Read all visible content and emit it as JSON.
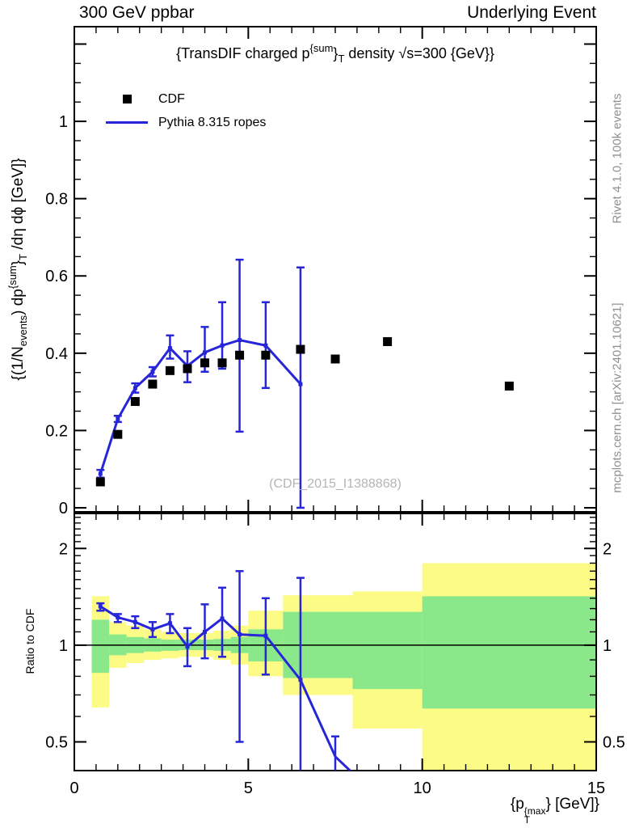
{
  "header": {
    "left": "300 GeV ppbar",
    "right": "Underlying Event"
  },
  "plot": {
    "title": {
      "pre": "{TransDIF charged p",
      "sup": "{sum",
      "mid": "}",
      "sub": "T",
      "post": " density √s=300 {GeV}}"
    },
    "legend": [
      {
        "label": "CDF",
        "marker": "filled-square",
        "color": "#000000"
      },
      {
        "label": "Pythia 8.315 ropes",
        "marker": "line",
        "color": "#2626d8"
      }
    ],
    "ylabel": {
      "p1": "{(1/N",
      "s1": "events",
      "p2": ") dp",
      "sup": "{sum",
      "p3": "}",
      "s2": "T",
      "p4": " /dη dϕ [GeV]}"
    },
    "xlabel": {
      "pre": "{p",
      "sup": "{max",
      "sub": "T",
      "post": "} [GeV]}"
    },
    "ratio_label": "Ratio to CDF",
    "side_text_top": "Rivet 4.1.0,  100k events",
    "side_text_bottom": "mcplots.cern.ch [arXiv:2401.10621]",
    "watermark": "(CDF_2015_I1388868)"
  },
  "axes": {
    "x_major": [
      {
        "v": 0,
        "label": "0"
      },
      {
        "v": 5,
        "label": "5"
      },
      {
        "v": 10,
        "label": "10"
      },
      {
        "v": 15,
        "label": "15"
      }
    ],
    "main_y_major": [
      {
        "v": 0,
        "label": "0"
      },
      {
        "v": 0.2,
        "label": "0.2"
      },
      {
        "v": 0.4,
        "label": "0.4"
      },
      {
        "v": 0.6,
        "label": "0.6"
      },
      {
        "v": 0.8,
        "label": "0.8"
      },
      {
        "v": 1,
        "label": "1"
      }
    ],
    "ratio_y_major": [
      {
        "v": 0.5,
        "label": "0.5"
      },
      {
        "v": 1,
        "label": "1"
      },
      {
        "v": 2,
        "label": "2"
      }
    ]
  },
  "chart_data": {
    "type": "line",
    "title": "{TransDIF charged p{sum}T density sqrt(s)=300 {GeV}}",
    "xlabel": "{pT{max}} [GeV]}",
    "ylabel": "{(1/Nevents) dp{sum}T /deta dphi [GeV]}",
    "x_range": [
      0,
      15
    ],
    "main_y_range": [
      -0.0105,
      1.245
    ],
    "ratio_y_range": [
      0.407,
      2.57
    ],
    "ratio_scale": "log2",
    "grid": false,
    "legend_position": "top-left",
    "series": [
      {
        "name": "CDF",
        "type": "scatter",
        "marker": "filled-square",
        "color": "#000000",
        "x": [
          0.75,
          1.25,
          1.75,
          2.25,
          2.75,
          3.25,
          3.75,
          4.25,
          4.75,
          5.5,
          6.5,
          7.5,
          9,
          12.5
        ],
        "y": [
          0.067,
          0.19,
          0.275,
          0.32,
          0.355,
          0.36,
          0.375,
          0.375,
          0.395,
          0.395,
          0.41,
          0.385,
          0.43,
          0.315
        ]
      },
      {
        "name": "Pythia 8.315 ropes",
        "type": "line",
        "color": "#2626d8",
        "x": [
          0.75,
          1.25,
          1.75,
          2.25,
          2.75,
          3.25,
          3.75,
          4.25,
          4.75,
          5.5,
          6.5
        ],
        "y": [
          0.088,
          0.23,
          0.31,
          0.352,
          0.413,
          0.367,
          0.402,
          0.42,
          0.434,
          0.42,
          0.32
        ],
        "y_err_lo": [
          0.078,
          0.222,
          0.298,
          0.34,
          0.386,
          0.325,
          0.352,
          0.36,
          0.197,
          0.31,
          0.0
        ],
        "y_err_hi": [
          0.098,
          0.238,
          0.322,
          0.364,
          0.446,
          0.405,
          0.468,
          0.532,
          0.642,
          0.532,
          0.622
        ]
      }
    ],
    "ratio": {
      "reference_line": 1,
      "line": {
        "color": "#2626d8",
        "x": [
          0.75,
          1.25,
          1.75,
          2.25,
          2.75,
          3.25,
          3.75,
          4.25,
          4.75,
          5.5,
          6.5,
          7.5,
          8.05
        ],
        "y": [
          1.32,
          1.22,
          1.18,
          1.12,
          1.17,
          0.99,
          1.1,
          1.21,
          1.08,
          1.07,
          0.78,
          0.45,
          0.395
        ],
        "y_err_lo": [
          1.28,
          1.18,
          1.13,
          1.06,
          1.09,
          0.86,
          0.91,
          0.92,
          0.5,
          0.81,
          0.4,
          0.4,
          null
        ],
        "y_err_hi": [
          1.35,
          1.25,
          1.23,
          1.18,
          1.25,
          1.13,
          1.34,
          1.51,
          1.7,
          1.4,
          1.62,
          0.52,
          null
        ]
      },
      "bands": {
        "x_edges": [
          0.5,
          1,
          1.5,
          2,
          2.5,
          3,
          3.5,
          4,
          4.5,
          5,
          6,
          7,
          8,
          10,
          15
        ],
        "yellow_lo": [
          0.64,
          0.85,
          0.88,
          0.9,
          0.91,
          0.92,
          0.92,
          0.9,
          0.87,
          0.8,
          0.7,
          0.7,
          0.55,
          0.4
        ],
        "yellow_hi": [
          1.42,
          1.18,
          1.15,
          1.12,
          1.1,
          1.09,
          1.09,
          1.11,
          1.15,
          1.28,
          1.43,
          1.43,
          1.47,
          1.8
        ],
        "green_lo": [
          0.82,
          0.93,
          0.945,
          0.955,
          0.96,
          0.965,
          0.965,
          0.96,
          0.945,
          0.89,
          0.79,
          0.79,
          0.73,
          0.635
        ],
        "green_hi": [
          1.2,
          1.08,
          1.06,
          1.05,
          1.04,
          1.04,
          1.04,
          1.045,
          1.06,
          1.12,
          1.27,
          1.27,
          1.27,
          1.42
        ]
      }
    },
    "colors": {
      "band_yellow": "#fbfb86",
      "band_green": "#8ae88a",
      "mc_blue": "#2626d8"
    }
  }
}
